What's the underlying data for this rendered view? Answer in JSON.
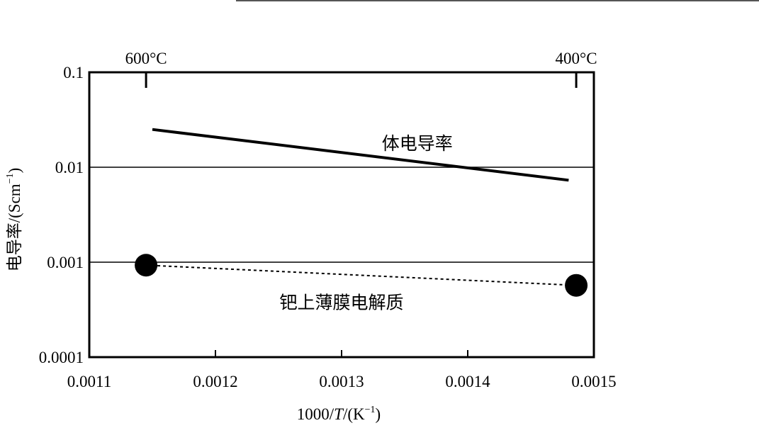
{
  "chart_data": {
    "type": "line",
    "title": "",
    "xlabel_parts": [
      "1000/",
      "T",
      "/(K",
      "−1",
      ")"
    ],
    "ylabel_parts": [
      "电导率/(Scm",
      "−1",
      ")"
    ],
    "x_ticks": [
      {
        "value": 0.0011,
        "label": "0.0011"
      },
      {
        "value": 0.0012,
        "label": "0.0012"
      },
      {
        "value": 0.0013,
        "label": "0.0013"
      },
      {
        "value": 0.0014,
        "label": "0.0014"
      },
      {
        "value": 0.0015,
        "label": "0.0015"
      }
    ],
    "y_ticks": [
      {
        "value": 0.0001,
        "label": "0.0001"
      },
      {
        "value": 0.001,
        "label": "0.001"
      },
      {
        "value": 0.01,
        "label": "0.01"
      },
      {
        "value": 0.1,
        "label": "0.1"
      }
    ],
    "top_axis_ticks": [
      {
        "value": 0.001145,
        "label": "600°C"
      },
      {
        "value": 0.001486,
        "label": "400°C"
      }
    ],
    "xlim": [
      0.0011,
      0.00152
    ],
    "ylim": [
      0.0001,
      0.1
    ],
    "y_scale": "log",
    "grid": "horizontal at 0.01 and 0.001",
    "series": [
      {
        "name": "体电导率",
        "style": "solid",
        "marker": "none",
        "x": [
          0.00115,
          0.00148
        ],
        "y": [
          0.025,
          0.0073
        ]
      },
      {
        "name": "钯上薄膜电解质",
        "style": "dotted",
        "marker": "filled-circle",
        "x": [
          0.001145,
          0.001486
        ],
        "y": [
          0.00093,
          0.00057
        ]
      }
    ],
    "annotations": [
      {
        "text": "体电导率",
        "x": 0.00136,
        "y": 0.018
      },
      {
        "text": "钯上薄膜电解质",
        "x": 0.0013,
        "y": 0.00038
      }
    ]
  }
}
